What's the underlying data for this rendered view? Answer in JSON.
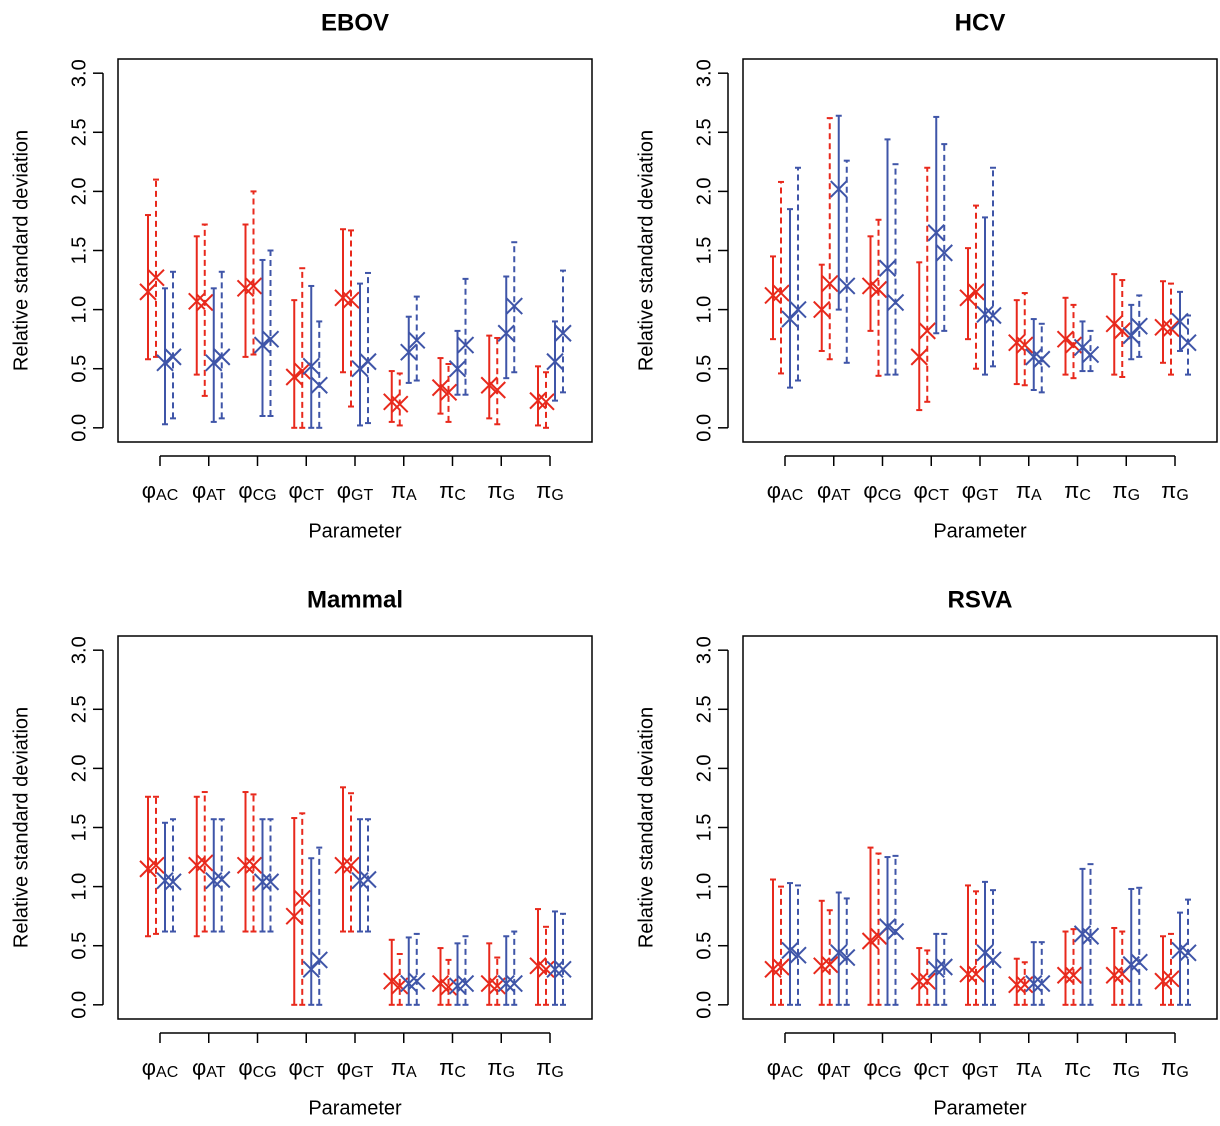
{
  "chart_data": [
    {
      "type": "errorbar",
      "title": "EBOV",
      "x_label": "Parameter",
      "y_label": "Relative standard deviation",
      "categories": [
        "φAC",
        "φAT",
        "φCG",
        "φCT",
        "φGT",
        "πA",
        "πC",
        "πG",
        "πG"
      ],
      "ylim": [
        -0.12,
        3.12
      ],
      "yticks": [
        {
          "value": 0,
          "label": "0.0"
        },
        {
          "value": 0.5,
          "label": "0.5"
        },
        {
          "value": 1,
          "label": "1.0"
        },
        {
          "value": 1.5,
          "label": "1.5"
        },
        {
          "value": 2,
          "label": "2.0"
        },
        {
          "value": 2.5,
          "label": "2.5"
        },
        {
          "value": 3,
          "label": "3.0"
        }
      ],
      "series": [
        {
          "color": "#e8291c",
          "linestyle": "solid",
          "values": [
            1.15,
            1.07,
            1.18,
            0.43,
            1.1,
            0.22,
            0.34,
            0.36,
            0.23
          ],
          "lower": [
            0.58,
            0.45,
            0.6,
            0.0,
            0.47,
            0.05,
            0.12,
            0.08,
            0.02
          ],
          "upper": [
            1.8,
            1.62,
            1.72,
            1.08,
            1.68,
            0.48,
            0.59,
            0.78,
            0.52
          ]
        },
        {
          "color": "#e8291c",
          "linestyle": "dashed",
          "values": [
            1.27,
            1.06,
            1.2,
            0.48,
            1.08,
            0.2,
            0.3,
            0.32,
            0.22
          ],
          "lower": [
            0.6,
            0.27,
            0.62,
            0.0,
            0.18,
            0.02,
            0.05,
            0.03,
            0.0
          ],
          "upper": [
            2.1,
            1.72,
            2.0,
            1.35,
            1.67,
            0.46,
            0.54,
            0.76,
            0.47
          ]
        },
        {
          "color": "#3f55a8",
          "linestyle": "solid",
          "values": [
            0.55,
            0.55,
            0.7,
            0.52,
            0.5,
            0.64,
            0.5,
            0.8,
            0.56
          ],
          "lower": [
            0.03,
            0.05,
            0.1,
            0.0,
            0.02,
            0.38,
            0.28,
            0.42,
            0.23
          ],
          "upper": [
            1.18,
            1.18,
            1.42,
            1.2,
            1.22,
            0.94,
            0.82,
            1.28,
            0.9
          ]
        },
        {
          "color": "#3f55a8",
          "linestyle": "dashed",
          "values": [
            0.6,
            0.6,
            0.75,
            0.36,
            0.56,
            0.74,
            0.7,
            1.03,
            0.8
          ],
          "lower": [
            0.08,
            0.08,
            0.1,
            0.0,
            0.04,
            0.4,
            0.28,
            0.47,
            0.3
          ],
          "upper": [
            1.32,
            1.32,
            1.5,
            0.9,
            1.31,
            1.11,
            1.26,
            1.57,
            1.33
          ]
        }
      ]
    },
    {
      "type": "errorbar",
      "title": "HCV",
      "x_label": "Parameter",
      "y_label": "Relative standard deviation",
      "categories": [
        "φAC",
        "φAT",
        "φCG",
        "φCT",
        "φGT",
        "πA",
        "πC",
        "πG",
        "πG"
      ],
      "ylim": [
        -0.12,
        3.12
      ],
      "yticks": [
        {
          "value": 0,
          "label": "0.0"
        },
        {
          "value": 0.5,
          "label": "0.5"
        },
        {
          "value": 1,
          "label": "1.0"
        },
        {
          "value": 1.5,
          "label": "1.5"
        },
        {
          "value": 2,
          "label": "2.0"
        },
        {
          "value": 2.5,
          "label": "2.5"
        },
        {
          "value": 3,
          "label": "3.0"
        }
      ],
      "series": [
        {
          "color": "#e8291c",
          "linestyle": "solid",
          "values": [
            1.12,
            1.0,
            1.2,
            0.6,
            1.1,
            0.72,
            0.75,
            0.88,
            0.85
          ],
          "lower": [
            0.75,
            0.65,
            0.82,
            0.15,
            0.75,
            0.37,
            0.45,
            0.45,
            0.55
          ],
          "upper": [
            1.45,
            1.38,
            1.62,
            1.4,
            1.52,
            1.08,
            1.1,
            1.3,
            1.24
          ]
        },
        {
          "color": "#e8291c",
          "linestyle": "dashed",
          "values": [
            1.14,
            1.22,
            1.17,
            0.82,
            1.15,
            0.7,
            0.7,
            0.82,
            0.84
          ],
          "lower": [
            0.46,
            0.58,
            0.44,
            0.22,
            0.5,
            0.36,
            0.42,
            0.43,
            0.45
          ],
          "upper": [
            2.08,
            2.62,
            1.76,
            2.2,
            1.88,
            1.14,
            1.04,
            1.25,
            1.22
          ]
        },
        {
          "color": "#3f55a8",
          "linestyle": "solid",
          "values": [
            0.92,
            2.02,
            1.35,
            1.65,
            0.96,
            0.6,
            0.68,
            0.78,
            0.9
          ],
          "lower": [
            0.34,
            1.0,
            0.45,
            0.8,
            0.45,
            0.32,
            0.48,
            0.58,
            0.65
          ],
          "upper": [
            1.85,
            2.64,
            2.44,
            2.63,
            1.78,
            0.92,
            0.9,
            1.04,
            1.15
          ]
        },
        {
          "color": "#3f55a8",
          "linestyle": "dashed",
          "values": [
            1.0,
            1.2,
            1.06,
            1.48,
            0.95,
            0.58,
            0.62,
            0.86,
            0.72
          ],
          "lower": [
            0.4,
            0.55,
            0.45,
            0.82,
            0.52,
            0.3,
            0.48,
            0.6,
            0.45
          ],
          "upper": [
            2.2,
            2.26,
            2.23,
            2.4,
            2.2,
            0.88,
            0.82,
            1.12,
            0.95
          ]
        }
      ]
    },
    {
      "type": "errorbar",
      "title": "Mammal",
      "x_label": "Parameter",
      "y_label": "Relative standard deviation",
      "categories": [
        "φAC",
        "φAT",
        "φCG",
        "φCT",
        "φGT",
        "πA",
        "πC",
        "πG",
        "πG"
      ],
      "ylim": [
        -0.12,
        3.12
      ],
      "yticks": [
        {
          "value": 0,
          "label": "0.0"
        },
        {
          "value": 0.5,
          "label": "0.5"
        },
        {
          "value": 1,
          "label": "1.0"
        },
        {
          "value": 1.5,
          "label": "1.5"
        },
        {
          "value": 2,
          "label": "2.0"
        },
        {
          "value": 2.5,
          "label": "2.5"
        },
        {
          "value": 3,
          "label": "3.0"
        }
      ],
      "series": [
        {
          "color": "#e8291c",
          "linestyle": "solid",
          "values": [
            1.15,
            1.18,
            1.18,
            0.75,
            1.18,
            0.2,
            0.18,
            0.18,
            0.33
          ],
          "lower": [
            0.58,
            0.58,
            0.62,
            0.0,
            0.62,
            0.0,
            0.0,
            0.0,
            0.0
          ],
          "upper": [
            1.76,
            1.76,
            1.8,
            1.58,
            1.84,
            0.55,
            0.48,
            0.52,
            0.81
          ]
        },
        {
          "color": "#e8291c",
          "linestyle": "dashed",
          "values": [
            1.18,
            1.2,
            1.18,
            0.9,
            1.18,
            0.16,
            0.15,
            0.16,
            0.3
          ],
          "lower": [
            0.6,
            0.62,
            0.62,
            0.0,
            0.62,
            0.0,
            0.0,
            0.0,
            0.0
          ],
          "upper": [
            1.76,
            1.8,
            1.78,
            1.62,
            1.79,
            0.43,
            0.38,
            0.4,
            0.66
          ]
        },
        {
          "color": "#3f55a8",
          "linestyle": "solid",
          "values": [
            1.05,
            1.05,
            1.04,
            0.3,
            1.05,
            0.18,
            0.16,
            0.18,
            0.3
          ],
          "lower": [
            0.62,
            0.62,
            0.62,
            0.0,
            0.62,
            0.0,
            0.0,
            0.0,
            0.0
          ],
          "upper": [
            1.54,
            1.57,
            1.57,
            1.24,
            1.57,
            0.57,
            0.52,
            0.58,
            0.79
          ]
        },
        {
          "color": "#3f55a8",
          "linestyle": "dashed",
          "values": [
            1.04,
            1.06,
            1.04,
            0.38,
            1.06,
            0.2,
            0.18,
            0.18,
            0.3
          ],
          "lower": [
            0.62,
            0.62,
            0.62,
            0.0,
            0.62,
            0.0,
            0.0,
            0.0,
            0.0
          ],
          "upper": [
            1.57,
            1.57,
            1.57,
            1.33,
            1.57,
            0.6,
            0.58,
            0.62,
            0.77
          ]
        }
      ]
    },
    {
      "type": "errorbar",
      "title": "RSVA",
      "x_label": "Parameter",
      "y_label": "Relative standard deviation",
      "categories": [
        "φAC",
        "φAT",
        "φCG",
        "φCT",
        "φGT",
        "πA",
        "πC",
        "πG",
        "πG"
      ],
      "ylim": [
        -0.12,
        3.12
      ],
      "yticks": [
        {
          "value": 0,
          "label": "0.0"
        },
        {
          "value": 0.5,
          "label": "0.5"
        },
        {
          "value": 1,
          "label": "1.0"
        },
        {
          "value": 1.5,
          "label": "1.5"
        },
        {
          "value": 2,
          "label": "2.0"
        },
        {
          "value": 2.5,
          "label": "2.5"
        },
        {
          "value": 3,
          "label": "3.0"
        }
      ],
      "series": [
        {
          "color": "#e8291c",
          "linestyle": "solid",
          "values": [
            0.3,
            0.33,
            0.54,
            0.2,
            0.26,
            0.17,
            0.25,
            0.25,
            0.2
          ],
          "lower": [
            0.0,
            0.0,
            0.0,
            0.0,
            0.0,
            0.0,
            0.0,
            0.0,
            0.0
          ],
          "upper": [
            1.06,
            0.88,
            1.33,
            0.48,
            1.01,
            0.39,
            0.62,
            0.65,
            0.58
          ]
        },
        {
          "color": "#e8291c",
          "linestyle": "dashed",
          "values": [
            0.32,
            0.34,
            0.58,
            0.2,
            0.26,
            0.17,
            0.25,
            0.26,
            0.22
          ],
          "lower": [
            0.0,
            0.0,
            0.0,
            0.0,
            0.0,
            0.0,
            0.0,
            0.0,
            0.0
          ],
          "upper": [
            1.0,
            0.8,
            1.28,
            0.46,
            0.96,
            0.36,
            0.64,
            0.62,
            0.6
          ]
        },
        {
          "color": "#3f55a8",
          "linestyle": "solid",
          "values": [
            0.46,
            0.44,
            0.66,
            0.3,
            0.44,
            0.18,
            0.6,
            0.34,
            0.46
          ],
          "lower": [
            0.0,
            0.0,
            0.0,
            0.0,
            0.0,
            0.0,
            0.0,
            0.0,
            0.0
          ],
          "upper": [
            1.03,
            0.95,
            1.25,
            0.6,
            1.04,
            0.53,
            1.15,
            0.98,
            0.78
          ]
        },
        {
          "color": "#3f55a8",
          "linestyle": "dashed",
          "values": [
            0.42,
            0.4,
            0.62,
            0.32,
            0.38,
            0.18,
            0.58,
            0.36,
            0.44
          ],
          "lower": [
            0.0,
            0.0,
            0.0,
            0.0,
            0.0,
            0.0,
            0.0,
            0.0,
            0.0
          ],
          "upper": [
            1.01,
            0.9,
            1.26,
            0.6,
            0.97,
            0.53,
            1.19,
            0.99,
            0.89
          ]
        }
      ]
    }
  ]
}
